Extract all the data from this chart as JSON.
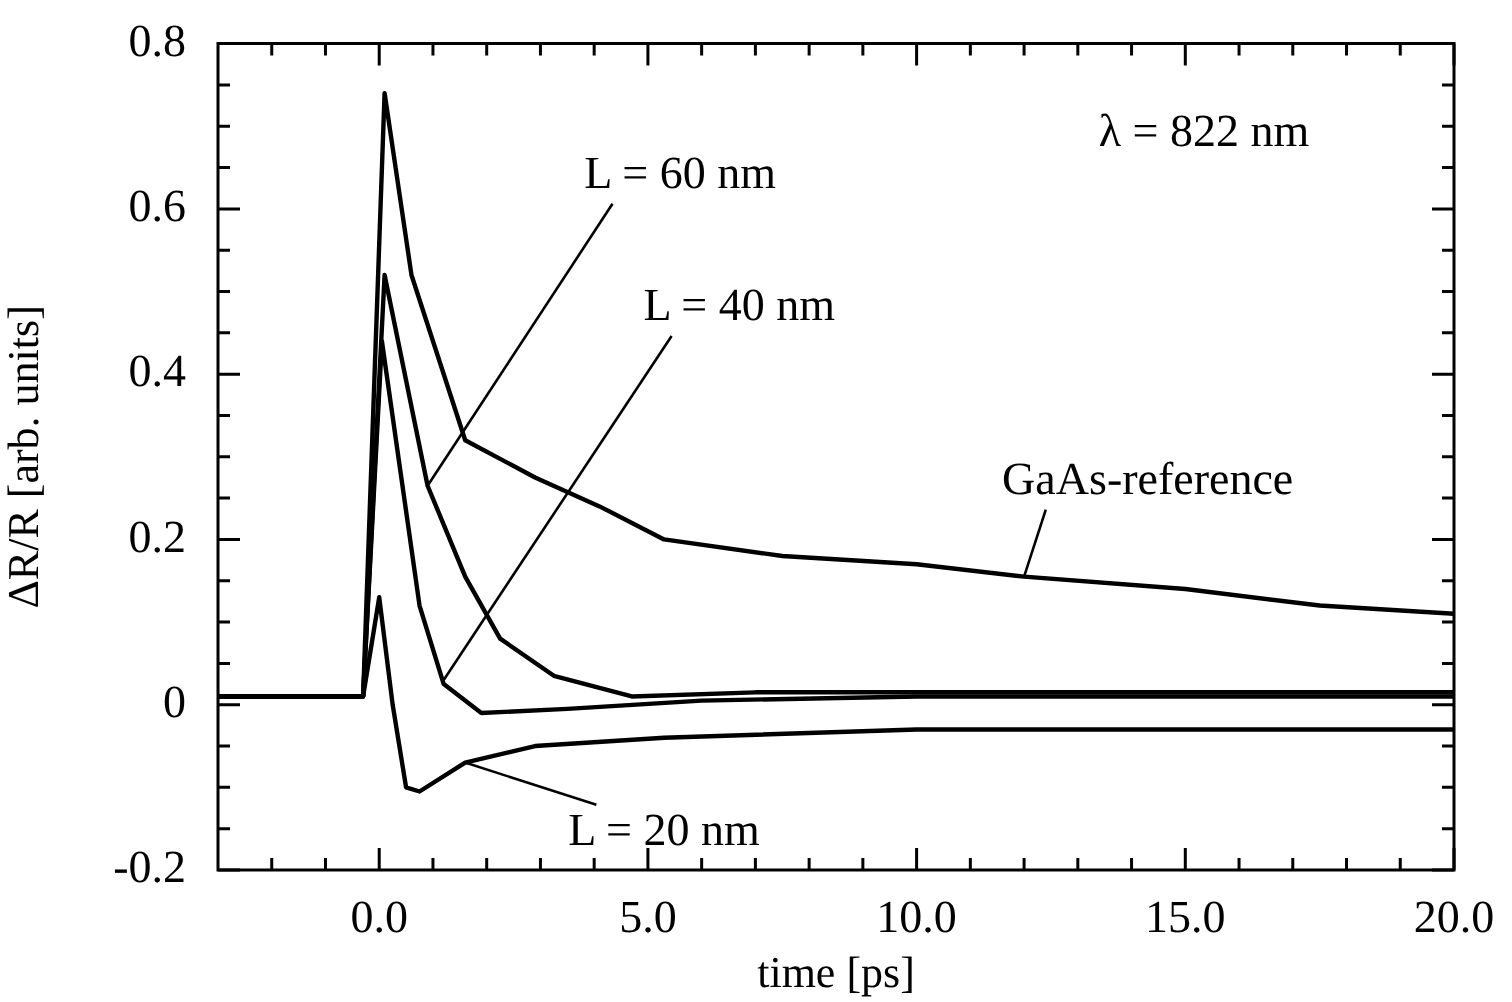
{
  "chart_data": {
    "type": "line",
    "xlabel": "time [ps]",
    "ylabel": "ΔR/R [arb. units]",
    "annotations": [
      "λ = 822 nm"
    ],
    "xlim": [
      -3,
      20
    ],
    "ylim": [
      -0.2,
      0.8
    ],
    "xticks": [
      {
        "value": -2,
        "label": null
      },
      {
        "value": -1,
        "label": null
      },
      {
        "value": 0,
        "label": "0.0"
      },
      {
        "value": 1,
        "label": null
      },
      {
        "value": 2,
        "label": null
      },
      {
        "value": 3,
        "label": null
      },
      {
        "value": 4,
        "label": null
      },
      {
        "value": 5,
        "label": "5.0"
      },
      {
        "value": 6,
        "label": null
      },
      {
        "value": 7,
        "label": null
      },
      {
        "value": 8,
        "label": null
      },
      {
        "value": 9,
        "label": null
      },
      {
        "value": 10,
        "label": "10.0"
      },
      {
        "value": 11,
        "label": null
      },
      {
        "value": 12,
        "label": null
      },
      {
        "value": 13,
        "label": null
      },
      {
        "value": 14,
        "label": null
      },
      {
        "value": 15,
        "label": "15.0"
      },
      {
        "value": 16,
        "label": null
      },
      {
        "value": 17,
        "label": null
      },
      {
        "value": 18,
        "label": null
      },
      {
        "value": 19,
        "label": null
      },
      {
        "value": 20,
        "label": "20.0"
      }
    ],
    "yticks": [
      -0.2,
      {
        "value": -0.15,
        "label": null
      },
      {
        "value": -0.1,
        "label": null
      },
      {
        "value": -0.05,
        "label": null
      },
      0,
      {
        "value": 0.05,
        "label": null
      },
      {
        "value": 0.1,
        "label": null
      },
      {
        "value": 0.15,
        "label": null
      },
      0.2,
      {
        "value": 0.25,
        "label": null
      },
      {
        "value": 0.3,
        "label": null
      },
      {
        "value": 0.35,
        "label": null
      },
      0.4,
      {
        "value": 0.45,
        "label": null
      },
      {
        "value": 0.5,
        "label": null
      },
      {
        "value": 0.55,
        "label": null
      },
      0.6,
      {
        "value": 0.65,
        "label": null
      },
      {
        "value": 0.7,
        "label": null
      },
      {
        "value": 0.75,
        "label": null
      },
      0.8
    ],
    "grid": false,
    "marker": "none",
    "line_style": "solid",
    "series": [
      {
        "name": "GaAs-reference",
        "color": "#000000",
        "x": [
          -3,
          -1,
          -0.3,
          0.1,
          0.6,
          1.6,
          2.9,
          4.1,
          5.3,
          7.5,
          10,
          12,
          15,
          17.5,
          20
        ],
        "values": [
          0.01,
          0.01,
          0.01,
          0.74,
          0.52,
          0.32,
          0.275,
          0.24,
          0.2,
          0.18,
          0.17,
          0.155,
          0.14,
          0.12,
          0.11
        ]
      },
      {
        "name": "L = 60 nm",
        "color": "#000000",
        "x": [
          -3,
          -1,
          -0.3,
          0.1,
          0.9,
          1.6,
          2.25,
          3.25,
          4.7,
          7,
          10,
          15,
          20
        ],
        "values": [
          0.01,
          0.01,
          0.01,
          0.52,
          0.265,
          0.155,
          0.08,
          0.035,
          0.01,
          0.015,
          0.015,
          0.015,
          0.015
        ]
      },
      {
        "name": "L = 40 nm",
        "color": "#000000",
        "x": [
          -3,
          -1,
          -0.3,
          0.05,
          0.4,
          0.75,
          1.2,
          1.9,
          3.5,
          6,
          10,
          15,
          20
        ],
        "values": [
          0.01,
          0.01,
          0.01,
          0.44,
          0.28,
          0.12,
          0.025,
          -0.01,
          -0.005,
          0.005,
          0.01,
          0.01,
          0.01
        ]
      },
      {
        "name": "L = 20 nm",
        "color": "#000000",
        "x": [
          -3,
          -1,
          -0.3,
          0,
          0.25,
          0.5,
          0.75,
          1.6,
          2.9,
          5.3,
          10,
          15,
          20
        ],
        "values": [
          0.01,
          0.01,
          0.01,
          0.13,
          0,
          -0.1,
          -0.105,
          -0.07,
          -0.05,
          -0.04,
          -0.03,
          -0.03,
          -0.03
        ]
      }
    ]
  }
}
